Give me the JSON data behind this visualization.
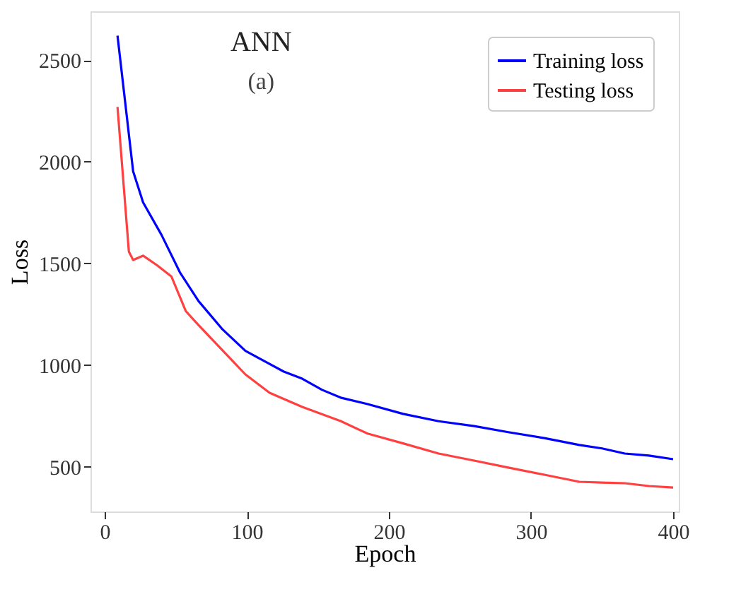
{
  "chart_data": {
    "type": "line",
    "title": "ANN",
    "subtitle": "(a)",
    "xlabel": "Epoch",
    "ylabel": "Loss",
    "xlim": [
      -10,
      404
    ],
    "ylim": [
      280,
      2740
    ],
    "xticks": [
      0,
      100,
      200,
      300,
      400
    ],
    "yticks": [
      500,
      1000,
      1500,
      2000,
      2500
    ],
    "grid": false,
    "legend": "top right",
    "line_style": "solid",
    "marker": "none",
    "series": [
      {
        "name": "Training loss",
        "color": "#0000ff",
        "x": [
          9,
          20,
          27,
          40,
          53,
          66,
          83,
          99,
          113,
          126,
          139,
          153,
          166,
          185,
          210,
          235,
          260,
          284,
          310,
          334,
          350,
          366,
          383,
          400
        ],
        "values": [
          2620,
          1953,
          1800,
          1640,
          1455,
          1315,
          1175,
          1070,
          1017,
          968,
          933,
          878,
          840,
          808,
          760,
          724,
          700,
          670,
          640,
          607,
          590,
          565,
          555,
          537
        ]
      },
      {
        "name": "Testing loss",
        "color": "#ff4040",
        "x": [
          9,
          17,
          20,
          27,
          37,
          47,
          57,
          66,
          83,
          99,
          116,
          139,
          166,
          185,
          210,
          235,
          260,
          284,
          310,
          334,
          350,
          366,
          383,
          400
        ],
        "values": [
          2270,
          1558,
          1517,
          1538,
          1490,
          1435,
          1266,
          1197,
          1072,
          954,
          864,
          794,
          725,
          663,
          615,
          565,
          530,
          496,
          460,
          426,
          422,
          419,
          405,
          398
        ]
      }
    ]
  }
}
